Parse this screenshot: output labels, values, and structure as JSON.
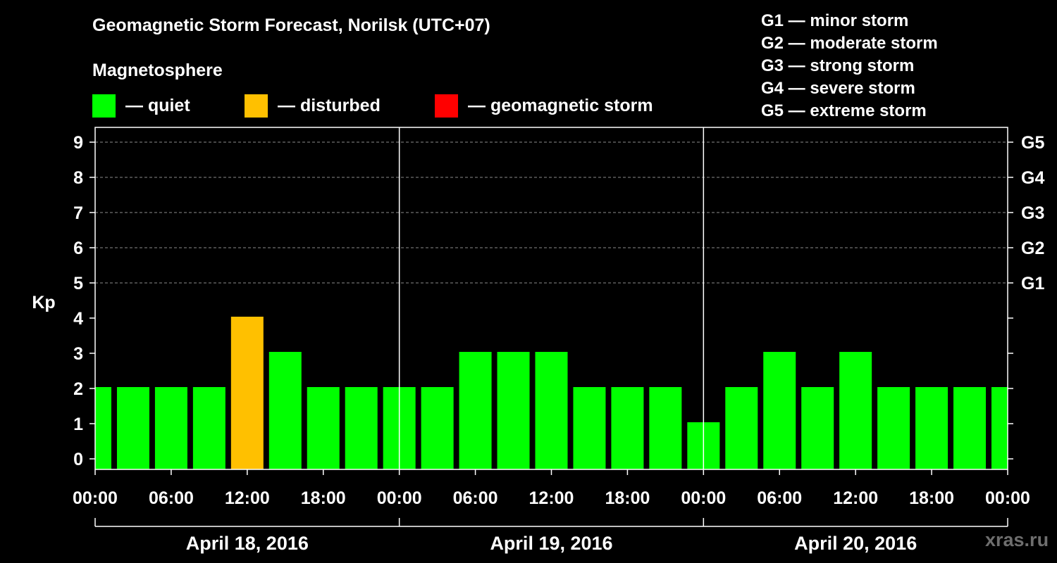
{
  "chart_data": {
    "type": "bar",
    "title": "Geomagnetic Storm Forecast, Norilsk (UTC+07)",
    "subtitle": "Magnetosphere",
    "ylabel": "Kp",
    "ylim": [
      0,
      9
    ],
    "yticks": [
      "0",
      "1",
      "2",
      "3",
      "4",
      "5",
      "6",
      "7",
      "8",
      "9"
    ],
    "g_levels": [
      {
        "kp": 5,
        "label": "G1"
      },
      {
        "kp": 6,
        "label": "G2"
      },
      {
        "kp": 7,
        "label": "G3"
      },
      {
        "kp": 8,
        "label": "G4"
      },
      {
        "kp": 9,
        "label": "G5"
      }
    ],
    "xticks": [
      "00:00",
      "06:00",
      "12:00",
      "18:00",
      "00:00",
      "06:00",
      "12:00",
      "18:00",
      "00:00",
      "06:00",
      "12:00",
      "18:00",
      "00:00",
      "06:00",
      "12:00",
      "18:00",
      "00:00"
    ],
    "days": [
      "April 18, 2016",
      "April 19, 2016",
      "April 20, 2016"
    ],
    "interval_hours": 3,
    "values": [
      2,
      2,
      2,
      2,
      4,
      3,
      2,
      2,
      2,
      2,
      3,
      3,
      3,
      2,
      2,
      2,
      1,
      2,
      3,
      2,
      3,
      2,
      2,
      2,
      2
    ],
    "legend": [
      {
        "label": "— quiet",
        "color": "#00ff00"
      },
      {
        "label": "— disturbed",
        "color": "#ffc000"
      },
      {
        "label": "— geomagnetic storm",
        "color": "#ff0000"
      }
    ],
    "storm_scale": [
      "G1 — minor storm",
      "G2 — moderate storm",
      "G3 — strong storm",
      "G4 — severe storm",
      "G5 — extreme storm"
    ],
    "grid": true
  },
  "watermark": "xras.ru"
}
